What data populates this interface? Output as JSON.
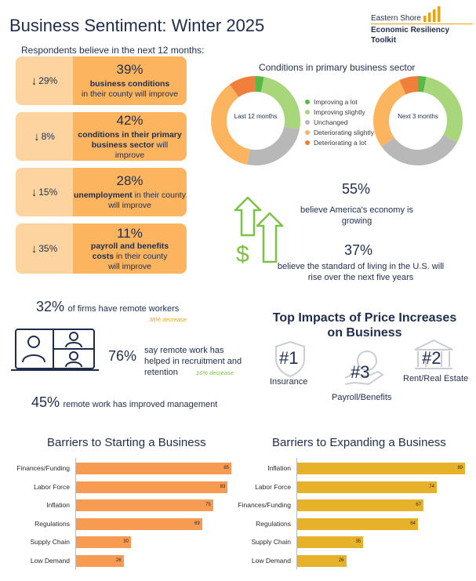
{
  "header": {
    "title": "Business Sentiment: Winter 2025",
    "logo_line1": "Eastern Shore",
    "logo_line2": "Economic Resiliency Toolkit"
  },
  "intro": "Respondents believe in the next 12 months:",
  "cards": [
    {
      "change": "29%",
      "pct": "39%",
      "bold": "business conditions",
      "rest": "in their county will improve"
    },
    {
      "change": "8%",
      "pct": "42%",
      "bold": "conditions in their primary business sector",
      "rest": "will improve"
    },
    {
      "change": "15%",
      "pct": "28%",
      "bold": "unemployment",
      "rest": "in their county will improve"
    },
    {
      "change": "35%",
      "pct": "11%",
      "bold": "payroll and benefits costs",
      "rest": "in their county will improve"
    }
  ],
  "colors": {
    "card": "#fdb45f",
    "card_side": "#fdd3a0",
    "orange_bar": "#f79a52",
    "gold_bar": "#e8b12a",
    "green": "#7cc244",
    "navy": "#1f2d4d"
  },
  "sector": {
    "title": "Conditions in primary business sector",
    "legend": [
      {
        "label": "Improving a lot",
        "color": "#58b947"
      },
      {
        "label": "Improving slightly",
        "color": "#a8d67a"
      },
      {
        "label": "Unchanged",
        "color": "#b8b8b8"
      },
      {
        "label": "Deteriorating slightly",
        "color": "#fdb45f"
      },
      {
        "label": "Deteriorating a lot",
        "color": "#f07f3c"
      }
    ],
    "donut1_label": "Last 12 months",
    "donut2_label": "Next 3 months"
  },
  "economy": {
    "pct1": "55%",
    "text1": "believe America's economy is growing",
    "pct2": "37%",
    "text2": "believe the standard of living in the U.S. will rise over the next five years"
  },
  "remote": {
    "line1_pct": "32%",
    "line1_text": "of firms have remote workers",
    "line1_note": "38% decrease",
    "line2_pct": "76%",
    "line2_text": "say remote work has helped in recruitment and retention",
    "line2_note": "16% decrease",
    "line3_pct": "45%",
    "line3_text": "remote work has improved management"
  },
  "impacts": {
    "title": "Top Impacts of Price Increases on Business",
    "items": [
      {
        "rank": "#1",
        "label": "Insurance"
      },
      {
        "rank": "#3",
        "label": "Payroll/Benefits"
      },
      {
        "rank": "#2",
        "label": "Rent/Real Estate"
      }
    ]
  },
  "chart_data": [
    {
      "type": "donut",
      "title": "Conditions in primary business sector",
      "center_label": "Last 12 months",
      "categories": [
        "Improving a lot",
        "Improving slightly",
        "Unchanged",
        "Deteriorating slightly",
        "Deteriorating a lot"
      ],
      "values": [
        3,
        25,
        25,
        37,
        10
      ]
    },
    {
      "type": "donut",
      "title": "Conditions in primary business sector",
      "center_label": "Next 3 months",
      "categories": [
        "Improving a lot",
        "Improving slightly",
        "Unchanged",
        "Deteriorating slightly",
        "Deteriorating a lot"
      ],
      "values": [
        3,
        30,
        32,
        28,
        7
      ]
    },
    {
      "type": "bar",
      "orientation": "horizontal",
      "title": "Barriers to Starting a Business",
      "categories": [
        "Finances/Funding",
        "Labor Force",
        "Inflation",
        "Regulations",
        "Supply Chain",
        "Low Demand"
      ],
      "values": [
        85,
        83,
        75,
        69,
        30,
        26
      ],
      "xlim": [
        0,
        85
      ]
    },
    {
      "type": "bar",
      "orientation": "horizontal",
      "title": "Barriers to Expanding a Business",
      "categories": [
        "Inflation",
        "Labor Force",
        "Finances/Funding",
        "Regulations",
        "Supply Chain",
        "Low Demand"
      ],
      "values": [
        89,
        74,
        67,
        64,
        35,
        26
      ],
      "xlim": [
        0,
        89
      ]
    }
  ]
}
